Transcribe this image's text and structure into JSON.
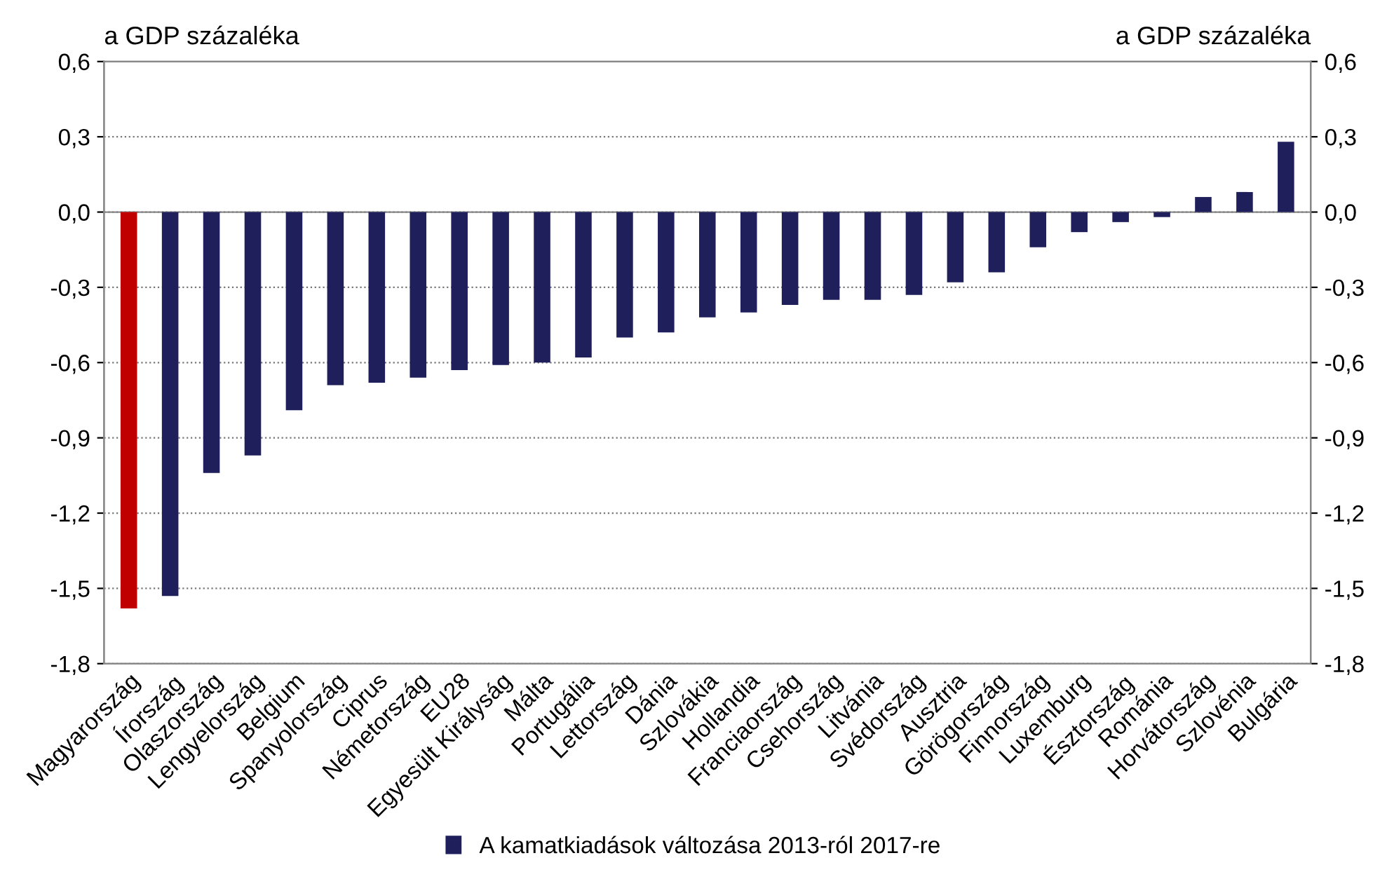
{
  "chart_data": {
    "type": "bar",
    "ylabel": "a GDP százaléka",
    "y2label": "a GDP százaléka",
    "categories": [
      "Magyarország",
      "Írország",
      "Olaszország",
      "Lengyelország",
      "Belgium",
      "Spanyolország",
      "Ciprus",
      "Németország",
      "EU28",
      "Egyesült Királyság",
      "Málta",
      "Portugália",
      "Lettország",
      "Dánia",
      "Szlovákia",
      "Hollandia",
      "Franciaország",
      "Csehország",
      "Litvánia",
      "Svédország",
      "Ausztria",
      "Görögország",
      "Finnország",
      "Luxemburg",
      "Észtország",
      "Románia",
      "Horvátország",
      "Szlovénia",
      "Bulgária"
    ],
    "series": [
      {
        "name": "A kamatkiadások változása 2013-ról 2017-re",
        "color": "#1f1f5c",
        "colors": [
          "#c00000",
          "#1f1f5c",
          "#1f1f5c",
          "#1f1f5c",
          "#1f1f5c",
          "#1f1f5c",
          "#1f1f5c",
          "#1f1f5c",
          "#1f1f5c",
          "#1f1f5c",
          "#1f1f5c",
          "#1f1f5c",
          "#1f1f5c",
          "#1f1f5c",
          "#1f1f5c",
          "#1f1f5c",
          "#1f1f5c",
          "#1f1f5c",
          "#1f1f5c",
          "#1f1f5c",
          "#1f1f5c",
          "#1f1f5c",
          "#1f1f5c",
          "#1f1f5c",
          "#1f1f5c",
          "#1f1f5c",
          "#1f1f5c",
          "#1f1f5c",
          "#1f1f5c"
        ],
        "values": [
          -1.58,
          -1.53,
          -1.04,
          -0.97,
          -0.79,
          -0.69,
          -0.68,
          -0.66,
          -0.63,
          -0.61,
          -0.6,
          -0.58,
          -0.5,
          -0.48,
          -0.42,
          -0.4,
          -0.37,
          -0.35,
          -0.35,
          -0.33,
          -0.28,
          -0.24,
          -0.14,
          -0.08,
          -0.04,
          -0.02,
          0.06,
          0.08,
          0.28
        ]
      }
    ],
    "ylim": [
      -1.8,
      0.6
    ],
    "yticks": [
      {
        "value": -1.8,
        "label": "-1,8"
      },
      {
        "value": -1.5,
        "label": "-1,5"
      },
      {
        "value": -1.2,
        "label": "-1,2"
      },
      {
        "value": -0.9,
        "label": "-0,9"
      },
      {
        "value": -0.6,
        "label": "-0,6"
      },
      {
        "value": -0.3,
        "label": "-0,3"
      },
      {
        "value": 0,
        "label": "0,0"
      },
      {
        "value": 0.3,
        "label": "0,3"
      },
      {
        "value": 0.6,
        "label": "0,6"
      }
    ],
    "y2lim": [
      -1.8,
      0.6
    ],
    "y2ticks": [
      {
        "value": -1.8,
        "label": "-1,8"
      },
      {
        "value": -1.5,
        "label": "-1,5"
      },
      {
        "value": -1.2,
        "label": "-1,2"
      },
      {
        "value": -0.9,
        "label": "-0,9"
      },
      {
        "value": -0.6,
        "label": "-0,6"
      },
      {
        "value": -0.3,
        "label": "-0,3"
      },
      {
        "value": 0,
        "label": "0,0"
      },
      {
        "value": 0.3,
        "label": "0,3"
      },
      {
        "value": 0.6,
        "label": "0,6"
      }
    ],
    "grid": "y",
    "legend": "bottom"
  }
}
